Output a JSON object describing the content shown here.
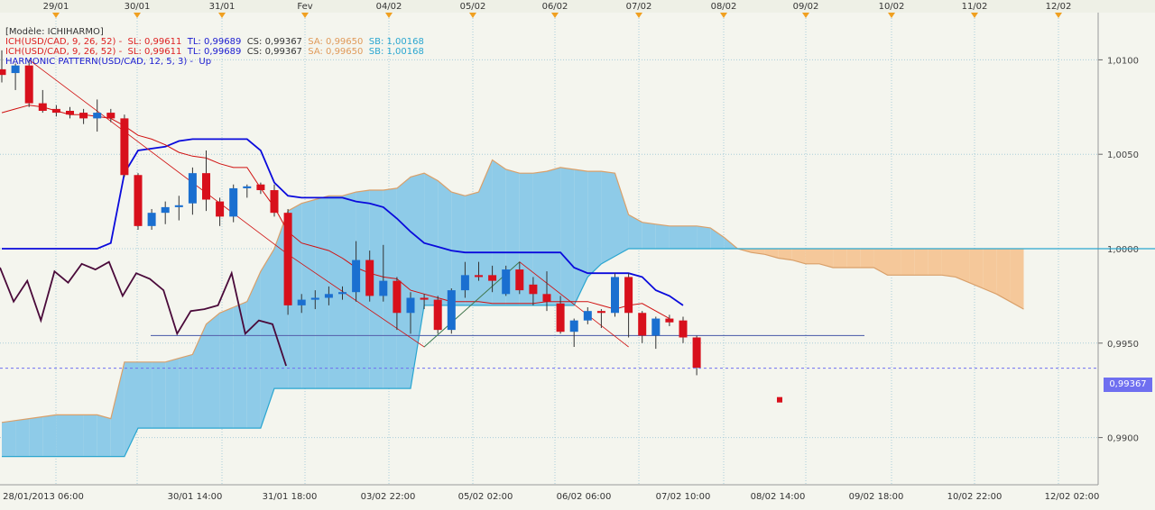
{
  "legend": {
    "model": "[Modèle: ICHIHARMO]",
    "lines": [
      {
        "name": "ICH(USD/CAD, 9, 26, 52) -",
        "sl": "SL: 0,99611",
        "tl": "TL: 0,99689",
        "cs": "CS: 0,99367",
        "sa": "SA: 0,99650",
        "sb": "SB: 1,00168"
      },
      {
        "name": "ICH(USD/CAD, 9, 26, 52) -",
        "sl": "SL: 0,99611",
        "tl": "TL: 0,99689",
        "cs": "CS: 0,99367",
        "sa": "SA: 0,99650",
        "sb": "SB: 1,00168"
      }
    ],
    "harmonic": "HARMONIC PATTERN(USD/CAD, 12, 5, 3) -  Up"
  },
  "price_tag": "0,99367",
  "colors": {
    "background": "#f4f5ee",
    "grid": "#a8cdd9",
    "candle_up": "#1a6fd0",
    "candle_down": "#d8101c",
    "tenkan": "#d01010",
    "kijun": "#0a0adc",
    "chikou": "#4a0a3a",
    "cloud_bull": "#8ecbe8",
    "cloud_bear": "#f5c89a",
    "senkou_a": "#d9a06a",
    "senkou_b": "#2aa6d0",
    "harmonic": "#2a8a5a",
    "support": "#5a6ab0",
    "current_price": "#6f6ff0"
  },
  "chart_data": {
    "type": "candlestick",
    "instrument": "USD/CAD",
    "ylim": [
      0.9875,
      1.0125
    ],
    "y_ticks": [
      "1,0100",
      "1,0050",
      "1,0000",
      "0,9950",
      "0,9900"
    ],
    "y_tick_values": [
      1.01,
      1.005,
      1.0,
      0.995,
      0.99
    ],
    "top_ticks": [
      "29/01",
      "30/01",
      "31/01",
      "Fev",
      "04/02",
      "05/02",
      "06/02",
      "07/02",
      "08/02",
      "09/02",
      "10/02",
      "11/02",
      "12/02"
    ],
    "bottom_ticks": [
      "28/01/2013 06:00",
      "30/01 14:00",
      "31/01 18:00",
      "03/02 22:00",
      "05/02 02:00",
      "06/02 06:00",
      "07/02 10:00",
      "08/02 14:00",
      "09/02 18:00",
      "10/02 22:00",
      "12/02 02:00"
    ],
    "candles": [
      {
        "o": 1.0095,
        "h": 1.0105,
        "l": 1.0088,
        "c": 1.0092
      },
      {
        "o": 1.0093,
        "h": 1.0098,
        "l": 1.0084,
        "c": 1.0097
      },
      {
        "o": 1.0097,
        "h": 1.01,
        "l": 1.0075,
        "c": 1.0077
      },
      {
        "o": 1.0077,
        "h": 1.0084,
        "l": 1.0072,
        "c": 1.0073
      },
      {
        "o": 1.0074,
        "h": 1.0076,
        "l": 1.007,
        "c": 1.0072
      },
      {
        "o": 1.0073,
        "h": 1.0075,
        "l": 1.0069,
        "c": 1.0071
      },
      {
        "o": 1.0072,
        "h": 1.0074,
        "l": 1.0066,
        "c": 1.0069
      },
      {
        "o": 1.0069,
        "h": 1.0079,
        "l": 1.0062,
        "c": 1.0072
      },
      {
        "o": 1.0072,
        "h": 1.0074,
        "l": 1.0067,
        "c": 1.0069
      },
      {
        "o": 1.0069,
        "h": 1.0071,
        "l": 1.0038,
        "c": 1.0039
      },
      {
        "o": 1.0039,
        "h": 1.004,
        "l": 1.001,
        "c": 1.0012
      },
      {
        "o": 1.0012,
        "h": 1.0021,
        "l": 1.001,
        "c": 1.0019
      },
      {
        "o": 1.0019,
        "h": 1.0025,
        "l": 1.0013,
        "c": 1.0022
      },
      {
        "o": 1.0022,
        "h": 1.0028,
        "l": 1.0015,
        "c": 1.0023
      },
      {
        "o": 1.0024,
        "h": 1.0043,
        "l": 1.0018,
        "c": 1.004
      },
      {
        "o": 1.004,
        "h": 1.0052,
        "l": 1.002,
        "c": 1.0026
      },
      {
        "o": 1.0025,
        "h": 1.0027,
        "l": 1.0012,
        "c": 1.0017
      },
      {
        "o": 1.0017,
        "h": 1.0034,
        "l": 1.0014,
        "c": 1.0032
      },
      {
        "o": 1.0032,
        "h": 1.0034,
        "l": 1.0027,
        "c": 1.0033
      },
      {
        "o": 1.0034,
        "h": 1.0035,
        "l": 1.0029,
        "c": 1.0031
      },
      {
        "o": 1.0031,
        "h": 1.0034,
        "l": 1.0017,
        "c": 1.0019
      },
      {
        "o": 1.0019,
        "h": 1.0021,
        "l": 0.9965,
        "c": 0.997
      },
      {
        "o": 0.997,
        "h": 0.9976,
        "l": 0.9966,
        "c": 0.9973
      },
      {
        "o": 0.9973,
        "h": 0.9978,
        "l": 0.9968,
        "c": 0.9974
      },
      {
        "o": 0.9974,
        "h": 0.998,
        "l": 0.997,
        "c": 0.9976
      },
      {
        "o": 0.9976,
        "h": 0.998,
        "l": 0.9973,
        "c": 0.9977
      },
      {
        "o": 0.9977,
        "h": 1.0004,
        "l": 0.9972,
        "c": 0.9994
      },
      {
        "o": 0.9994,
        "h": 0.9999,
        "l": 0.9972,
        "c": 0.9975
      },
      {
        "o": 0.9975,
        "h": 1.0002,
        "l": 0.9972,
        "c": 0.9983
      },
      {
        "o": 0.9983,
        "h": 0.9985,
        "l": 0.9957,
        "c": 0.9966
      },
      {
        "o": 0.9966,
        "h": 0.9977,
        "l": 0.9955,
        "c": 0.9974
      },
      {
        "o": 0.9974,
        "h": 0.9976,
        "l": 0.9968,
        "c": 0.9973
      },
      {
        "o": 0.9973,
        "h": 0.9975,
        "l": 0.9955,
        "c": 0.9957
      },
      {
        "o": 0.9957,
        "h": 0.9979,
        "l": 0.9955,
        "c": 0.9978
      },
      {
        "o": 0.9978,
        "h": 0.9993,
        "l": 0.9974,
        "c": 0.9986
      },
      {
        "o": 0.9986,
        "h": 0.9993,
        "l": 0.9983,
        "c": 0.9985
      },
      {
        "o": 0.9986,
        "h": 0.9991,
        "l": 0.9977,
        "c": 0.9983
      },
      {
        "o": 0.9976,
        "h": 0.9991,
        "l": 0.9975,
        "c": 0.9989
      },
      {
        "o": 0.9989,
        "h": 0.9993,
        "l": 0.9976,
        "c": 0.9978
      },
      {
        "o": 0.9981,
        "h": 0.9985,
        "l": 0.997,
        "c": 0.9976
      },
      {
        "o": 0.9976,
        "h": 0.9988,
        "l": 0.9967,
        "c": 0.9972
      },
      {
        "o": 0.9971,
        "h": 0.9975,
        "l": 0.9955,
        "c": 0.9956
      },
      {
        "o": 0.9956,
        "h": 0.9963,
        "l": 0.9948,
        "c": 0.9962
      },
      {
        "o": 0.9962,
        "h": 0.9969,
        "l": 0.996,
        "c": 0.9967
      },
      {
        "o": 0.9967,
        "h": 0.9968,
        "l": 0.9958,
        "c": 0.9966
      },
      {
        "o": 0.9966,
        "h": 0.9987,
        "l": 0.9964,
        "c": 0.9985
      },
      {
        "o": 0.9985,
        "h": 0.9987,
        "l": 0.9953,
        "c": 0.9966
      },
      {
        "o": 0.9966,
        "h": 0.9967,
        "l": 0.995,
        "c": 0.9954
      },
      {
        "o": 0.9954,
        "h": 0.9964,
        "l": 0.9947,
        "c": 0.9963
      },
      {
        "o": 0.9963,
        "h": 0.9965,
        "l": 0.9959,
        "c": 0.9961
      },
      {
        "o": 0.9962,
        "h": 0.9964,
        "l": 0.995,
        "c": 0.9953
      },
      {
        "o": 0.9953,
        "h": 0.9954,
        "l": 0.9933,
        "c": 0.9937
      }
    ],
    "projection_marker": 0.992,
    "current_price": 0.99367,
    "support_level": 0.9954,
    "tenkan": [
      1.0072,
      1.0074,
      1.0076,
      1.0075,
      1.0073,
      1.0071,
      1.0071,
      1.007,
      1.0069,
      1.0065,
      1.006,
      1.0058,
      1.0055,
      1.0051,
      1.0049,
      1.0048,
      1.0045,
      1.0043,
      1.0043,
      1.0032,
      1.0022,
      1.0009,
      1.0003,
      1.0001,
      0.9999,
      0.9995,
      0.999,
      0.9987,
      0.9985,
      0.9984,
      0.9978,
      0.9976,
      0.9974,
      0.9972,
      0.9972,
      0.9972,
      0.9971,
      0.9971,
      0.9971,
      0.9971,
      0.9972,
      0.9972,
      0.9972,
      0.9972,
      0.997,
      0.9968,
      0.997,
      0.9971,
      0.9967,
      0.9963
    ],
    "kijun": [
      1.0,
      1.0,
      1.0,
      1.0,
      1.0,
      1.0,
      1.0,
      1.0,
      1.0003,
      1.004,
      1.0052,
      1.0053,
      1.0054,
      1.0057,
      1.0058,
      1.0058,
      1.0058,
      1.0058,
      1.0058,
      1.0052,
      1.0035,
      1.0028,
      1.0027,
      1.0027,
      1.0027,
      1.0027,
      1.0025,
      1.0024,
      1.0022,
      1.0016,
      1.0009,
      1.0003,
      1.0001,
      0.9999,
      0.9998,
      0.9998,
      0.9998,
      0.9998,
      0.9998,
      0.9998,
      0.9998,
      0.9998,
      0.999,
      0.9987,
      0.9987,
      0.9987,
      0.9987,
      0.9985,
      0.9978,
      0.9975,
      0.997
    ],
    "chikou": [
      0.999,
      0.9972,
      0.9983,
      0.9962,
      0.9988,
      0.9982,
      0.9992,
      0.9989,
      0.9993,
      0.9975,
      0.9987,
      0.9984,
      0.9978,
      0.9955,
      0.9967,
      0.9968,
      0.997,
      0.9987,
      0.9955,
      0.9962,
      0.996,
      0.9938
    ],
    "senkou_a": [
      0.9908,
      0.9909,
      0.991,
      0.9911,
      0.9912,
      0.9912,
      0.9912,
      0.9912,
      0.991,
      0.994,
      0.994,
      0.994,
      0.994,
      0.9942,
      0.9944,
      0.996,
      0.9966,
      0.9969,
      0.9972,
      0.9988,
      1.0,
      1.002,
      1.0024,
      1.0026,
      1.0028,
      1.0028,
      1.003,
      1.0031,
      1.0031,
      1.0032,
      1.0038,
      1.004,
      1.0036,
      1.003,
      1.0028,
      1.003,
      1.0047,
      1.0042,
      1.004,
      1.004,
      1.0041,
      1.0043,
      1.0042,
      1.0041,
      1.0041,
      1.004,
      1.0018,
      1.0014,
      1.0013,
      1.0012,
      1.0012,
      1.0012,
      1.0011,
      1.0006,
      1.0,
      0.9998,
      0.9997,
      0.9995,
      0.9994,
      0.9992,
      0.9992,
      0.999,
      0.999,
      0.999,
      0.999,
      0.9986,
      0.9986,
      0.9986,
      0.9986,
      0.9986,
      0.9985,
      0.9982,
      0.9979,
      0.9976,
      0.9972,
      0.9968
    ],
    "senkou_b": [
      0.989,
      0.989,
      0.989,
      0.989,
      0.989,
      0.989,
      0.989,
      0.989,
      0.989,
      0.989,
      0.9905,
      0.9905,
      0.9905,
      0.9905,
      0.9905,
      0.9905,
      0.9905,
      0.9905,
      0.9905,
      0.9905,
      0.9926,
      0.9926,
      0.9926,
      0.9926,
      0.9926,
      0.9926,
      0.9926,
      0.9926,
      0.9926,
      0.9926,
      0.9926,
      0.997,
      0.997,
      0.997,
      0.997,
      0.997,
      0.997,
      0.997,
      0.997,
      0.997,
      0.997,
      0.997,
      0.997,
      0.9985,
      0.9992,
      0.9996,
      1.0,
      1.0,
      1.0,
      1.0,
      1.0,
      1.0,
      1.0,
      1.0,
      1.0,
      1.0,
      1.0,
      1.0,
      1.0,
      1.0,
      1.0,
      1.0,
      1.0,
      1.0,
      1.0,
      1.0,
      1.0,
      1.0,
      1.0,
      1.0,
      1.0,
      1.0,
      1.0,
      1.0,
      1.0,
      1.0,
      1.0,
      1.0,
      1.0,
      1.0,
      1.0,
      1.0,
      1.0,
      1.0,
      1.0,
      1.0
    ]
  }
}
